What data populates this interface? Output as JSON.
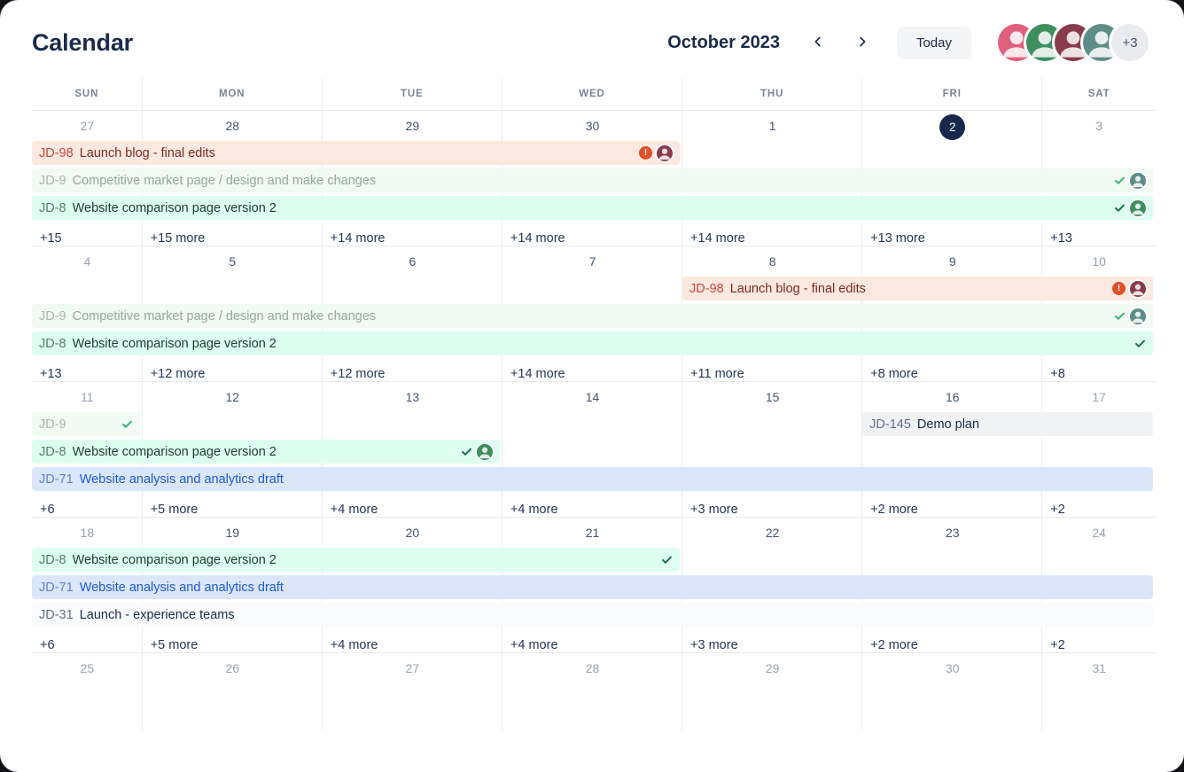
{
  "header": {
    "title": "Calendar",
    "month_label": "October 2023",
    "today_label": "Today",
    "avatar_overflow": "+3",
    "avatars": [
      {
        "name": "user-1",
        "bg": "#E0607E"
      },
      {
        "name": "user-2",
        "bg": "#3E8E5E"
      },
      {
        "name": "user-3",
        "bg": "#8A3B49"
      },
      {
        "name": "user-4",
        "bg": "#5E8D87"
      }
    ],
    "icons": {
      "prev": "chevron-left",
      "next": "chevron-right"
    }
  },
  "weekday_headers": [
    "SUN",
    "MON",
    "TUE",
    "WED",
    "THU",
    "FRI",
    "SAT"
  ],
  "event_styles": {
    "red": {
      "bg": "#FBE8E1",
      "key": "#CE483A",
      "title": "#7E2A1D",
      "check": "#36B37E"
    },
    "greenMuted": {
      "bg": "#F1FAF3",
      "key": "#A8B8AC",
      "title": "#93A99B",
      "check": "#36B37E"
    },
    "green": {
      "bg": "#DCFFF1",
      "key": "#5E7D6C",
      "title": "#1D3D2F",
      "check": "#216E4E"
    },
    "blue": {
      "bg": "#DCE6FB",
      "key": "#6483C8",
      "title": "#1D5BD8",
      "check": "#36B37E"
    },
    "gray": {
      "bg": "#F1F2F4",
      "key": "#626F86",
      "title": "#172B4D",
      "check": "#36B37E"
    },
    "white": {
      "bg": "#FAFBFC",
      "key": "#626F86",
      "title": "#172B4D",
      "check": "#36B37E"
    }
  },
  "weeks": [
    {
      "days": [
        {
          "n": "27",
          "muted": true
        },
        {
          "n": "28"
        },
        {
          "n": "29"
        },
        {
          "n": "30"
        },
        {
          "n": "1"
        },
        {
          "n": "2",
          "today": true
        },
        {
          "n": "3",
          "muted": true
        }
      ],
      "lines": [
        [
          {
            "key": "JD-98",
            "title": "Launch blog - final edits",
            "style": "red",
            "col": 0,
            "span": 4,
            "warning": true,
            "avatar": "#8A3B49"
          }
        ],
        [
          {
            "key": "JD-9",
            "title": "Competitive market page / design and make changes",
            "style": "greenMuted",
            "col": 0,
            "span": 7,
            "check": true,
            "avatar": "#5E8D87"
          }
        ],
        [
          {
            "key": "JD-8",
            "title": "Website comparison page version 2",
            "style": "green",
            "col": 0,
            "span": 7,
            "check": true,
            "avatar": "#3E8E5E"
          }
        ]
      ],
      "more": [
        "+15",
        "+15 more",
        "+14 more",
        "+14 more",
        "+14 more",
        "+13 more",
        "+13"
      ]
    },
    {
      "days": [
        {
          "n": "4",
          "muted": true
        },
        {
          "n": "5"
        },
        {
          "n": "6"
        },
        {
          "n": "7"
        },
        {
          "n": "8"
        },
        {
          "n": "9"
        },
        {
          "n": "10",
          "muted": true
        }
      ],
      "lines": [
        [
          {
            "key": "JD-98",
            "title": "Launch blog - final edits",
            "style": "red",
            "col": 4,
            "span": 3,
            "warning": true,
            "avatar": "#8A3B49"
          }
        ],
        [
          {
            "key": "JD-9",
            "title": "Competitive market page / design and make changes",
            "style": "greenMuted",
            "col": 0,
            "span": 7,
            "check": true,
            "avatar": "#5E8D87"
          }
        ],
        [
          {
            "key": "JD-8",
            "title": "Website comparison page version 2",
            "style": "green",
            "col": 0,
            "span": 7,
            "check": true
          }
        ]
      ],
      "more": [
        "+13",
        "+12 more",
        "+12 more",
        "+14 more",
        "+11 more",
        "+8 more",
        "+8"
      ]
    },
    {
      "days": [
        {
          "n": "11",
          "muted": true
        },
        {
          "n": "12"
        },
        {
          "n": "13"
        },
        {
          "n": "14"
        },
        {
          "n": "15"
        },
        {
          "n": "16"
        },
        {
          "n": "17",
          "muted": true
        }
      ],
      "lines": [
        [
          {
            "key": "JD-9",
            "title": "",
            "style": "greenMuted",
            "col": 0,
            "span": 1,
            "check": true
          },
          {
            "key": "JD-145",
            "title": "Demo plan",
            "style": "gray",
            "col": 5,
            "span": 2
          }
        ],
        [
          {
            "key": "JD-8",
            "title": "Website comparison page version 2",
            "style": "green",
            "col": 0,
            "span": 3,
            "check": true,
            "avatar": "#3E8E5E"
          }
        ],
        [
          {
            "key": "JD-71",
            "title": "Website analysis and analytics draft",
            "style": "blue",
            "col": 0,
            "span": 7
          }
        ]
      ],
      "more": [
        "+6",
        "+5 more",
        "+4 more",
        "+4 more",
        "+3 more",
        "+2 more",
        "+2"
      ]
    },
    {
      "days": [
        {
          "n": "18",
          "muted": true
        },
        {
          "n": "19"
        },
        {
          "n": "20"
        },
        {
          "n": "21"
        },
        {
          "n": "22"
        },
        {
          "n": "23"
        },
        {
          "n": "24",
          "muted": true
        }
      ],
      "lines": [
        [
          {
            "key": "JD-8",
            "title": "Website comparison page version 2",
            "style": "green",
            "col": 0,
            "span": 4,
            "check": true
          }
        ],
        [
          {
            "key": "JD-71",
            "title": "Website analysis and analytics draft",
            "style": "blue",
            "col": 0,
            "span": 7
          }
        ],
        [
          {
            "key": "JD-31",
            "title": "Launch - experience teams",
            "style": "white",
            "col": 0,
            "span": 7
          }
        ]
      ],
      "more": [
        "+6",
        "+5 more",
        "+4 more",
        "+4 more",
        "+3 more",
        "+2 more",
        "+2"
      ]
    },
    {
      "days": [
        {
          "n": "25",
          "muted": true
        },
        {
          "n": "26",
          "muted": true
        },
        {
          "n": "27",
          "muted": true
        },
        {
          "n": "28",
          "muted": true
        },
        {
          "n": "29",
          "muted": true
        },
        {
          "n": "30",
          "muted": true
        },
        {
          "n": "31",
          "muted": true
        }
      ],
      "lines": [],
      "more": null
    }
  ]
}
